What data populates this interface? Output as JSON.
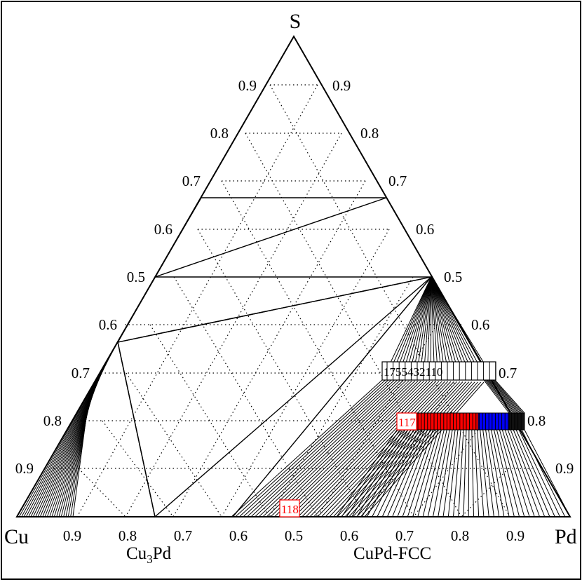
{
  "vertices": {
    "top": "S",
    "left": "Cu",
    "right": "Pd"
  },
  "ticks": {
    "left_edge_upper": [
      "0.9",
      "0.8",
      "0.7",
      "0.6",
      "0.5"
    ],
    "left_edge_lower": [
      "0.6",
      "0.7",
      "0.8",
      "0.9"
    ],
    "right_edge": [
      "0.9",
      "0.8",
      "0.7",
      "0.6",
      "0.5",
      "0.6",
      "0.7",
      "0.8",
      "0.9"
    ],
    "bottom_edge": [
      "0.9",
      "0.8",
      "0.7",
      "0.6",
      "0.5",
      "0.6",
      "0.7",
      "0.8",
      "0.9"
    ]
  },
  "phases": {
    "cu3pd": {
      "base": "Cu",
      "sub": "3",
      "tail": "Pd"
    },
    "cupd_fcc": "CuPd-FCC"
  },
  "labels": {
    "box_black": "1755432110",
    "box_red_1": "117",
    "box_red_2": "118"
  },
  "colors": {
    "line": "#000000",
    "red": "#ff0000",
    "blue": "#0000ff",
    "background": "#ffffff"
  }
}
